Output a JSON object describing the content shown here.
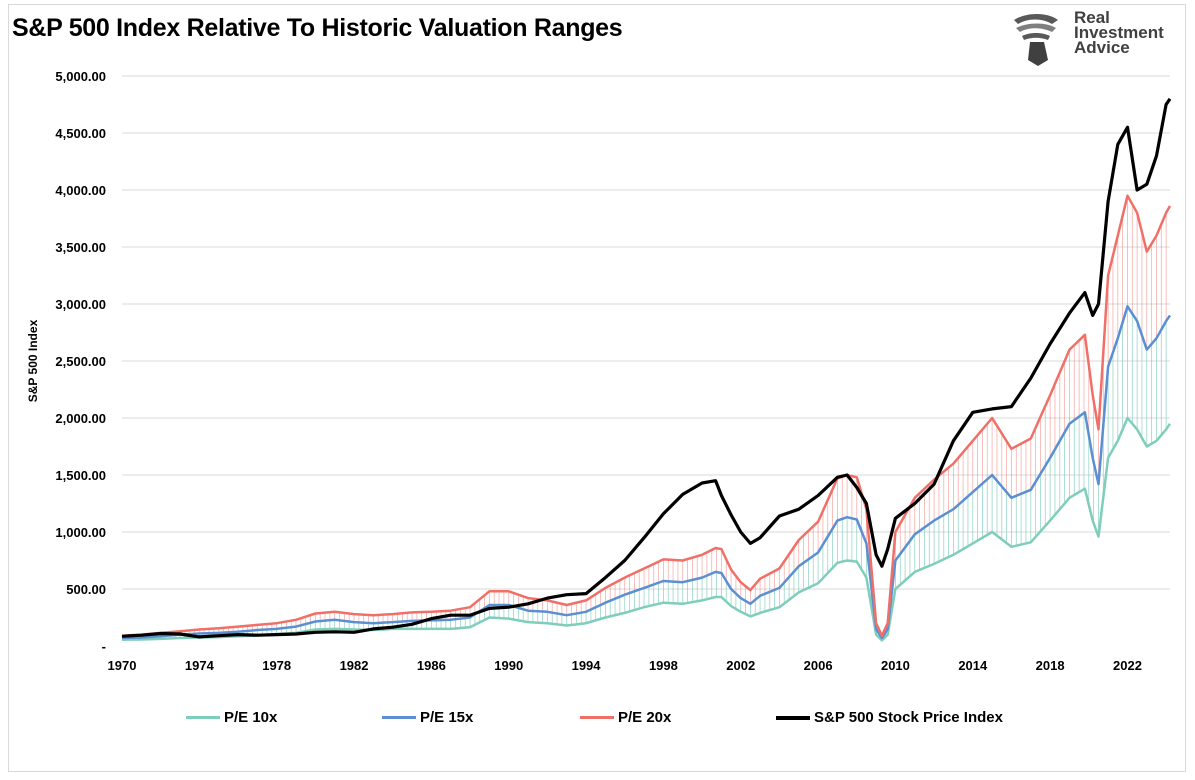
{
  "title": "S&P 500 Index Relative To Historic Valuation Ranges",
  "brand": {
    "line1": "Real",
    "line2": "Investment",
    "line3": "Advice"
  },
  "colors": {
    "pe10": "#7fcdbb",
    "pe15": "#5b8fd1",
    "pe20": "#f07068",
    "sp": "#000000",
    "grid": "#d9d9d9"
  },
  "chart_data": {
    "type": "line",
    "ylabel": "S&P 500 Index",
    "ylim": [
      0,
      5000
    ],
    "xlim": [
      1970,
      2024.2
    ],
    "y_ticks": [
      "-",
      "500.00",
      "1,000.00",
      "1,500.00",
      "2,000.00",
      "2,500.00",
      "3,000.00",
      "3,500.00",
      "4,000.00",
      "4,500.00",
      "5,000.00"
    ],
    "x_ticks": [
      "1970",
      "1974",
      "1978",
      "1982",
      "1986",
      "1990",
      "1994",
      "1998",
      "2002",
      "2006",
      "2010",
      "2014",
      "2018",
      "2022"
    ],
    "grid": "horizontal",
    "legend_position": "bottom",
    "x": [
      1970,
      1971,
      1972,
      1973,
      1974,
      1975,
      1976,
      1977,
      1978,
      1979,
      1980,
      1981,
      1982,
      1983,
      1984,
      1985,
      1986,
      1987,
      1988,
      1989,
      1990,
      1991,
      1992,
      1993,
      1994,
      1995,
      1996,
      1997,
      1998,
      1999,
      2000,
      2000.7,
      2001,
      2001.5,
      2002,
      2002.5,
      2003,
      2004,
      2005,
      2006,
      2007,
      2007.5,
      2008,
      2008.5,
      2009,
      2009.3,
      2009.6,
      2010,
      2011,
      2012,
      2013,
      2014,
      2015,
      2016,
      2017,
      2018,
      2019,
      2019.8,
      2020.2,
      2020.5,
      2021,
      2021.5,
      2022,
      2022.5,
      2023,
      2023.5,
      2024,
      2024.2
    ],
    "series": [
      {
        "name": "P/E 10x",
        "values": [
          55,
          57,
          62,
          70,
          75,
          78,
          85,
          92,
          105,
          115,
          145,
          150,
          145,
          140,
          150,
          150,
          150,
          150,
          165,
          250,
          240,
          210,
          200,
          180,
          200,
          250,
          290,
          340,
          380,
          370,
          400,
          430,
          430,
          350,
          300,
          260,
          290,
          340,
          470,
          550,
          730,
          750,
          740,
          600,
          100,
          50,
          100,
          500,
          650,
          720,
          800,
          900,
          1000,
          870,
          910,
          1100,
          1300,
          1380,
          1100,
          960,
          1650,
          1800,
          2000,
          1900,
          1750,
          1800,
          1900,
          1950
        ]
      },
      {
        "name": "P/E 15x",
        "values": [
          70,
          75,
          85,
          100,
          110,
          115,
          125,
          140,
          150,
          170,
          215,
          230,
          210,
          200,
          210,
          220,
          225,
          230,
          250,
          360,
          360,
          310,
          300,
          270,
          300,
          380,
          450,
          510,
          570,
          560,
          600,
          650,
          640,
          500,
          420,
          370,
          440,
          510,
          700,
          820,
          1100,
          1130,
          1110,
          900,
          150,
          70,
          150,
          750,
          980,
          1100,
          1200,
          1350,
          1500,
          1300,
          1370,
          1650,
          1950,
          2050,
          1650,
          1420,
          2450,
          2700,
          2980,
          2850,
          2600,
          2700,
          2850,
          2900
        ]
      },
      {
        "name": "P/E 20x",
        "values": [
          90,
          100,
          115,
          130,
          145,
          155,
          170,
          185,
          200,
          230,
          285,
          300,
          280,
          270,
          280,
          295,
          300,
          310,
          340,
          480,
          480,
          420,
          400,
          360,
          400,
          510,
          600,
          680,
          760,
          750,
          800,
          860,
          850,
          670,
          560,
          490,
          590,
          680,
          930,
          1090,
          1470,
          1500,
          1480,
          1200,
          200,
          90,
          200,
          1000,
          1300,
          1460,
          1600,
          1800,
          2000,
          1730,
          1820,
          2200,
          2600,
          2730,
          2200,
          1900,
          3250,
          3600,
          3950,
          3800,
          3460,
          3600,
          3800,
          3860
        ]
      },
      {
        "name": "S&P 500 Stock Price Index",
        "values": [
          85,
          95,
          110,
          105,
          80,
          90,
          100,
          95,
          100,
          105,
          120,
          125,
          120,
          150,
          165,
          190,
          240,
          270,
          270,
          330,
          340,
          370,
          420,
          450,
          460,
          600,
          750,
          950,
          1160,
          1330,
          1430,
          1450,
          1320,
          1150,
          1000,
          900,
          950,
          1140,
          1200,
          1320,
          1480,
          1500,
          1390,
          1250,
          800,
          700,
          850,
          1120,
          1250,
          1420,
          1800,
          2050,
          2080,
          2100,
          2350,
          2650,
          2920,
          3100,
          2900,
          3000,
          3900,
          4400,
          4550,
          4000,
          4050,
          4300,
          4750,
          4800
        ]
      }
    ]
  },
  "legend": [
    {
      "label": "P/E 10x"
    },
    {
      "label": "P/E 15x"
    },
    {
      "label": "P/E 20x"
    },
    {
      "label": "S&P 500 Stock Price Index"
    }
  ]
}
